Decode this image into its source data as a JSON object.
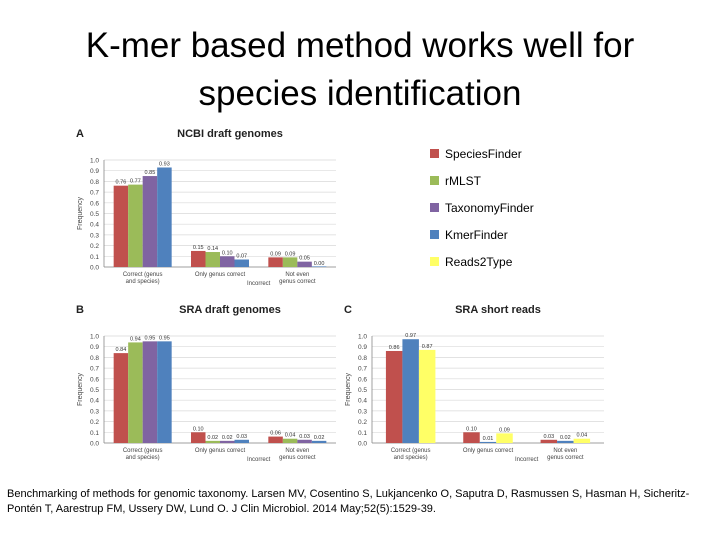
{
  "slide": {
    "title_line1": "K-mer based method works well for",
    "title_line2": "species identification"
  },
  "legend": [
    {
      "label": "SpeciesFinder",
      "color": "#c0504d"
    },
    {
      "label": "rMLST",
      "color": "#9bbb59"
    },
    {
      "label": "TaxonomyFinder",
      "color": "#8064a2"
    },
    {
      "label": "KmerFinder",
      "color": "#4f81bd"
    },
    {
      "label": "Reads2Type",
      "color": "#ffff66"
    }
  ],
  "caption": "Benchmarking of methods for genomic taxonomy. Larsen MV, Cosentino S, Lukjancenko O, Saputra D, Rasmussen S, Hasman H, Sicheritz-Pontén T, Aarestrup FM, Ussery DW, Lund O. J Clin Microbiol. 2014 May;52(5):1529-39.",
  "chart_data": [
    {
      "panel": "A",
      "type": "bar",
      "title": "NCBI draft genomes",
      "ylabel": "Frequency",
      "xlabel": "Incorrect",
      "ylim": [
        0,
        1.0
      ],
      "yticks": [
        "0.0",
        "0.1",
        "0.2",
        "0.3",
        "0.4",
        "0.5",
        "0.6",
        "0.7",
        "0.8",
        "0.9",
        "1.0"
      ],
      "categories": [
        "Correct (genus and species)",
        "Only genus correct",
        "Not even genus correct"
      ],
      "series": [
        {
          "name": "SpeciesFinder",
          "color": "#c0504d",
          "values": [
            0.76,
            0.15,
            0.09
          ]
        },
        {
          "name": "rMLST",
          "color": "#9bbb59",
          "values": [
            0.77,
            0.14,
            0.09
          ]
        },
        {
          "name": "TaxonomyFinder",
          "color": "#8064a2",
          "values": [
            0.85,
            0.1,
            0.05
          ]
        },
        {
          "name": "KmerFinder",
          "color": "#4f81bd",
          "values": [
            0.93,
            0.07,
            0.0
          ]
        }
      ]
    },
    {
      "panel": "B",
      "type": "bar",
      "title": "SRA draft genomes",
      "ylabel": "Frequency",
      "xlabel": "Incorrect",
      "ylim": [
        0,
        1.0
      ],
      "yticks": [
        "0.0",
        "0.1",
        "0.2",
        "0.3",
        "0.4",
        "0.5",
        "0.6",
        "0.7",
        "0.8",
        "0.9",
        "1.0"
      ],
      "categories": [
        "Correct (genus and species)",
        "Only genus correct",
        "Not even genus correct"
      ],
      "series": [
        {
          "name": "SpeciesFinder",
          "color": "#c0504d",
          "values": [
            0.84,
            0.1,
            0.06
          ]
        },
        {
          "name": "rMLST",
          "color": "#9bbb59",
          "values": [
            0.94,
            0.02,
            0.04
          ]
        },
        {
          "name": "TaxonomyFinder",
          "color": "#8064a2",
          "values": [
            0.95,
            0.02,
            0.03
          ]
        },
        {
          "name": "KmerFinder",
          "color": "#4f81bd",
          "values": [
            0.95,
            0.03,
            0.02
          ]
        }
      ]
    },
    {
      "panel": "C",
      "type": "bar",
      "title": "SRA short reads",
      "ylabel": "Frequency",
      "xlabel": "Incorrect",
      "ylim": [
        0,
        1.0
      ],
      "yticks": [
        "0.0",
        "0.1",
        "0.2",
        "0.3",
        "0.4",
        "0.5",
        "0.6",
        "0.7",
        "0.8",
        "0.9",
        "1.0"
      ],
      "categories": [
        "Correct (genus and species)",
        "Only genus correct",
        "Not even genus correct"
      ],
      "series": [
        {
          "name": "SpeciesFinder",
          "color": "#c0504d",
          "values": [
            0.86,
            0.1,
            0.03
          ]
        },
        {
          "name": "KmerFinder",
          "color": "#4f81bd",
          "values": [
            0.97,
            0.01,
            0.02
          ]
        },
        {
          "name": "Reads2Type",
          "color": "#ffff66",
          "values": [
            0.87,
            0.09,
            0.04
          ]
        }
      ]
    }
  ]
}
